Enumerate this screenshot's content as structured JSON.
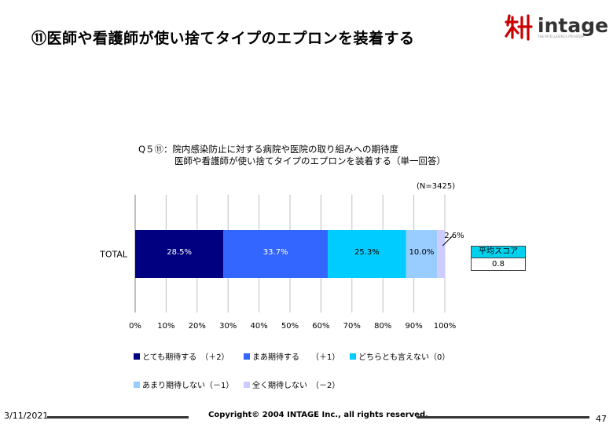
{
  "slide": {
    "title": "⑪医師や看護師が使い捨てタイプのエプロンを装着する",
    "logo_text": "intage",
    "logo_sub": "THE INTELLIGENCE PROVIDER",
    "date": "3/11/2021",
    "copyright": "Copyright© 2004 INTAGE Inc., all rights reserved.",
    "page_number": "47"
  },
  "chart_data": {
    "type": "bar",
    "orientation": "horizontal-stacked-percent",
    "title": "Q５⑪：院内感染防止に対する病院や医院の取り組みへの期待度\n　　　　医師や看護師が使い捨てタイプのエプロンを装着する（単一回答）",
    "sample_size": "(N=3425)",
    "categories": [
      "TOTAL"
    ],
    "series": [
      {
        "name": "とても期待する　（＋2）",
        "values": [
          28.5
        ],
        "color": "#000080",
        "label": "28.5%"
      },
      {
        "name": "まあ期待する　　（＋1）",
        "values": [
          33.7
        ],
        "color": "#3366ff",
        "label": "33.7%"
      },
      {
        "name": "どちらとも言えない（0）",
        "values": [
          25.3
        ],
        "color": "#00ccff",
        "label": "25.3%"
      },
      {
        "name": "あまり期待しない（－1）",
        "values": [
          10.0
        ],
        "color": "#99ccff",
        "label": "10.0%"
      },
      {
        "name": "全く期待しない　（－2）",
        "values": [
          2.6
        ],
        "color": "#ccccff",
        "label": "2.6%"
      }
    ],
    "x_ticks": [
      "0%",
      "10%",
      "20%",
      "30%",
      "40%",
      "50%",
      "60%",
      "70%",
      "80%",
      "90%",
      "100%"
    ],
    "xlim": [
      0,
      100
    ],
    "grid": true,
    "legend_position": "bottom",
    "average_score": {
      "label": "平均スコア",
      "value": "0.8"
    }
  }
}
